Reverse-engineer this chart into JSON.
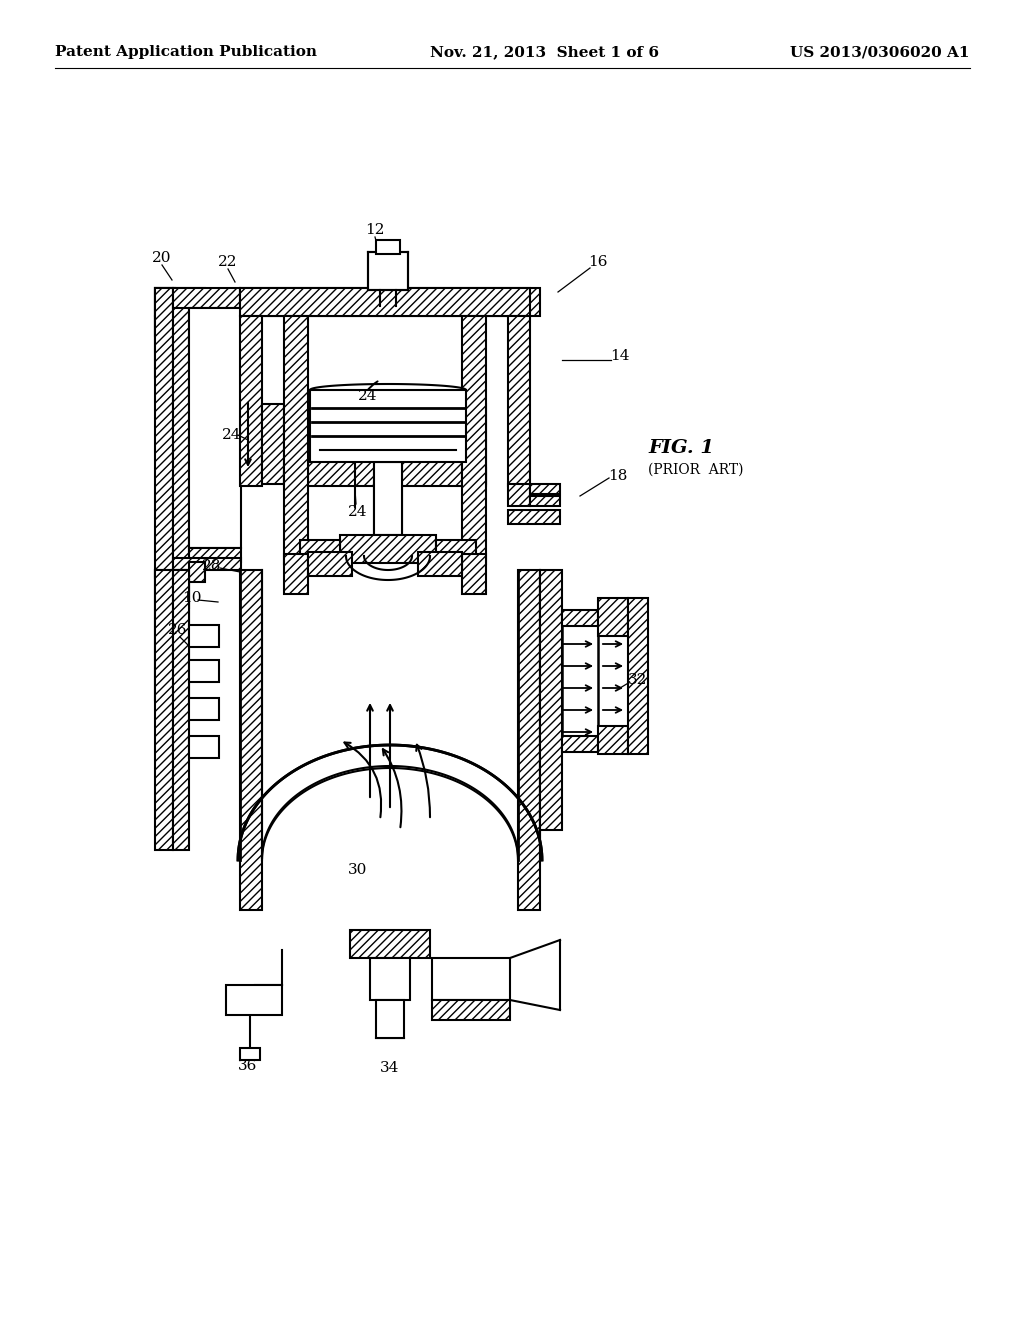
{
  "bg_color": "#ffffff",
  "line_color": "#000000",
  "header_left": "Patent Application Publication",
  "header_mid": "Nov. 21, 2013  Sheet 1 of 6",
  "header_right": "US 2013/0306020 A1",
  "fig_label": "FIG. 1",
  "fig_sublabel": "(PRIOR  ART)",
  "label_fontsize": 11,
  "header_fontsize": 11
}
